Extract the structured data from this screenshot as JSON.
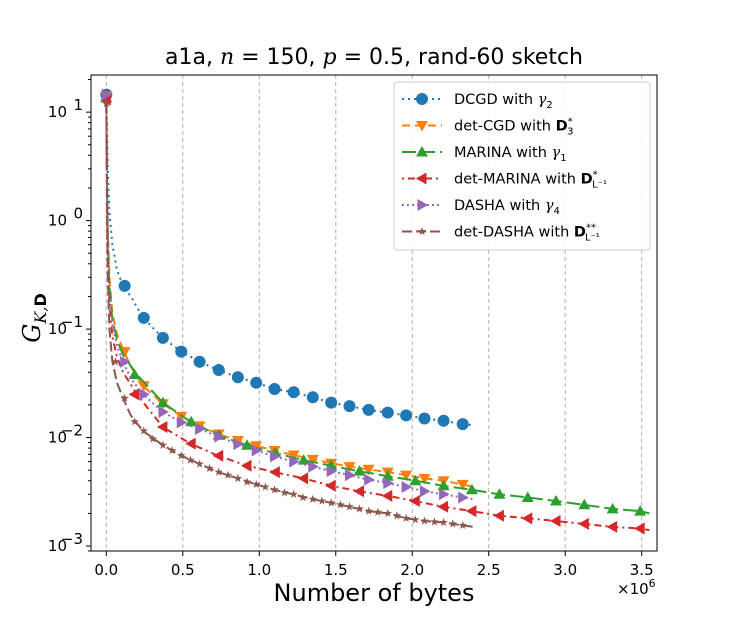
{
  "chart_data": {
    "type": "line",
    "title": {
      "prefix": "a1a, ",
      "n_symbol": "n",
      "n_text": " = 150, ",
      "p_symbol": "p",
      "p_text": " = 0.5, rand-60 sketch"
    },
    "xlabel": "Number of bytes",
    "ylabel": {
      "main": "G",
      "subscript": "K,",
      "subscript_bold": "D"
    },
    "x_multiplier": "×10",
    "x_multiplier_exp": "6",
    "x_ticks": [
      0.0,
      0.5,
      1.0,
      1.5,
      2.0,
      2.5,
      3.0,
      3.5
    ],
    "x_tick_labels": [
      "0.0",
      "0.5",
      "1.0",
      "1.5",
      "2.0",
      "2.5",
      "3.0",
      "3.5"
    ],
    "xlim": [
      -0.1,
      3.6
    ],
    "y_scale": "log",
    "ylim": [
      0.0009,
      22
    ],
    "y_ticks": [
      0.001,
      0.01,
      0.1,
      1,
      10
    ],
    "y_tick_labels": [
      {
        "base": "10",
        "exp": "−3"
      },
      {
        "base": "10",
        "exp": "−2"
      },
      {
        "base": "10",
        "exp": "−1"
      },
      {
        "base": "10",
        "exp": "0"
      },
      {
        "base": "10",
        "exp": "1"
      }
    ],
    "grid": "x-major-dashed",
    "legend_position": "top-right",
    "series": [
      {
        "name": "DCGD with",
        "name_math": "γ",
        "name_sub": "2",
        "color": "#1f77b4",
        "dash": "2,4",
        "marker": "circle",
        "x": [
          0.0,
          0.01,
          0.02,
          0.04,
          0.07,
          0.11,
          0.16,
          0.24,
          0.37,
          0.49,
          0.61,
          0.73,
          0.86,
          0.98,
          1.1,
          1.22,
          1.35,
          1.47,
          1.59,
          1.71,
          1.84,
          1.96,
          2.08,
          2.2,
          2.33,
          2.4
        ],
        "y": [
          15.0,
          3.0,
          1.2,
          0.6,
          0.35,
          0.25,
          0.2,
          0.127,
          0.083,
          0.062,
          0.05,
          0.042,
          0.036,
          0.032,
          0.028,
          0.0262,
          0.0235,
          0.021,
          0.0195,
          0.018,
          0.017,
          0.016,
          0.015,
          0.0143,
          0.0133,
          0.013
        ],
        "marker_x": [
          0.0,
          0.12,
          0.245,
          0.37,
          0.49,
          0.61,
          0.735,
          0.86,
          0.98,
          1.1,
          1.225,
          1.35,
          1.47,
          1.59,
          1.715,
          1.84,
          1.96,
          2.08,
          2.205,
          2.33
        ],
        "marker_y": [
          14.5,
          0.25,
          0.127,
          0.083,
          0.062,
          0.05,
          0.042,
          0.036,
          0.032,
          0.028,
          0.0262,
          0.0235,
          0.021,
          0.0195,
          0.018,
          0.017,
          0.016,
          0.015,
          0.0143,
          0.0133
        ]
      },
      {
        "name": "det-CGD with",
        "name_bold": "D",
        "name_sub": "3",
        "name_sup": "*",
        "color": "#ff7f0e",
        "dash": "8,5",
        "marker": "triangle-down",
        "x": [
          0.0,
          0.005,
          0.01,
          0.02,
          0.04,
          0.07,
          0.11,
          0.16,
          0.24,
          0.37,
          0.49,
          0.61,
          0.73,
          0.86,
          0.98,
          1.1,
          1.22,
          1.35,
          1.47,
          1.59,
          1.71,
          1.84,
          1.96,
          2.08,
          2.2,
          2.33,
          2.4
        ],
        "y": [
          14.0,
          2.0,
          0.8,
          0.3,
          0.14,
          0.09,
          0.065,
          0.045,
          0.03,
          0.0205,
          0.0157,
          0.0128,
          0.0108,
          0.0094,
          0.0084,
          0.0076,
          0.0069,
          0.0063,
          0.0058,
          0.0054,
          0.0051,
          0.0048,
          0.0045,
          0.0042,
          0.004,
          0.0037,
          0.0035
        ],
        "marker_x": [
          0.0,
          0.12,
          0.245,
          0.37,
          0.49,
          0.61,
          0.735,
          0.86,
          0.98,
          1.1,
          1.225,
          1.35,
          1.47,
          1.59,
          1.715,
          1.84,
          1.96,
          2.08,
          2.205,
          2.33
        ],
        "marker_y": [
          14.0,
          0.062,
          0.03,
          0.0205,
          0.0157,
          0.0128,
          0.0108,
          0.0094,
          0.0084,
          0.0076,
          0.0069,
          0.0063,
          0.0058,
          0.0054,
          0.0051,
          0.0048,
          0.0045,
          0.0042,
          0.004,
          0.0037
        ]
      },
      {
        "name": "MARINA with",
        "name_math": "γ",
        "name_sub": "1",
        "color": "#2ca02c",
        "dash": "14,5",
        "marker": "triangle-up",
        "x": [
          0.0,
          0.005,
          0.01,
          0.02,
          0.04,
          0.07,
          0.11,
          0.2,
          0.37,
          0.55,
          0.73,
          0.92,
          1.1,
          1.29,
          1.47,
          1.65,
          1.84,
          2.02,
          2.2,
          2.39,
          2.57,
          2.76,
          2.94,
          3.12,
          3.31,
          3.49,
          3.55
        ],
        "y": [
          13.5,
          2.0,
          0.7,
          0.25,
          0.12,
          0.08,
          0.058,
          0.038,
          0.021,
          0.014,
          0.0105,
          0.0085,
          0.0072,
          0.0062,
          0.0055,
          0.0049,
          0.0044,
          0.004,
          0.0036,
          0.0033,
          0.003,
          0.0028,
          0.0026,
          0.0024,
          0.0022,
          0.0021,
          0.002
        ],
        "marker_x": [
          0.0,
          0.185,
          0.37,
          0.555,
          0.735,
          0.92,
          1.105,
          1.29,
          1.47,
          1.655,
          1.84,
          2.02,
          2.205,
          2.39,
          2.57,
          2.755,
          2.94,
          3.125,
          3.31,
          3.49
        ],
        "marker_y": [
          13.5,
          0.038,
          0.021,
          0.014,
          0.0105,
          0.0085,
          0.0072,
          0.0062,
          0.0055,
          0.0049,
          0.0044,
          0.004,
          0.0036,
          0.0033,
          0.003,
          0.0028,
          0.0026,
          0.0024,
          0.0022,
          0.0021
        ]
      },
      {
        "name": "det-MARINA with",
        "name_bold": "D",
        "name_sub": "L⁻¹",
        "name_sup": "*",
        "color": "#d62728",
        "dash": "2,4,7,4",
        "marker": "triangle-left",
        "x": [
          0.0,
          0.005,
          0.01,
          0.02,
          0.04,
          0.07,
          0.11,
          0.2,
          0.37,
          0.55,
          0.73,
          0.92,
          1.1,
          1.29,
          1.47,
          1.65,
          1.84,
          2.02,
          2.2,
          2.39,
          2.57,
          2.76,
          2.94,
          3.12,
          3.31,
          3.49,
          3.55
        ],
        "y": [
          13.0,
          1.5,
          0.5,
          0.18,
          0.085,
          0.055,
          0.04,
          0.025,
          0.0125,
          0.0088,
          0.0068,
          0.0055,
          0.0048,
          0.0042,
          0.0036,
          0.0032,
          0.0029,
          0.0026,
          0.0023,
          0.0021,
          0.0019,
          0.0018,
          0.0017,
          0.0016,
          0.0015,
          0.00145,
          0.0014
        ],
        "marker_x": [
          0.0,
          0.185,
          0.37,
          0.555,
          0.735,
          0.92,
          1.105,
          1.29,
          1.47,
          1.655,
          1.84,
          2.02,
          2.205,
          2.39,
          2.57,
          2.755,
          2.94,
          3.125,
          3.31,
          3.49
        ],
        "marker_y": [
          13.0,
          0.025,
          0.0125,
          0.0088,
          0.0068,
          0.0055,
          0.0048,
          0.0042,
          0.0036,
          0.0032,
          0.0029,
          0.0026,
          0.0023,
          0.0021,
          0.0019,
          0.0018,
          0.0017,
          0.0016,
          0.0015,
          0.00145
        ]
      },
      {
        "name": "DASHA with",
        "name_math": "γ",
        "name_sub": "4",
        "color": "#9467bd",
        "dash": "2,3",
        "marker": "triangle-right",
        "x": [
          0.0,
          0.005,
          0.01,
          0.02,
          0.04,
          0.07,
          0.11,
          0.16,
          0.24,
          0.37,
          0.49,
          0.61,
          0.73,
          0.86,
          0.98,
          1.1,
          1.22,
          1.35,
          1.47,
          1.59,
          1.71,
          1.84,
          1.96,
          2.08,
          2.2,
          2.33,
          2.4
        ],
        "y": [
          14.5,
          2.0,
          0.6,
          0.22,
          0.11,
          0.07,
          0.05,
          0.035,
          0.025,
          0.0172,
          0.0138,
          0.012,
          0.0102,
          0.0087,
          0.0076,
          0.0067,
          0.006,
          0.0054,
          0.0049,
          0.0045,
          0.0041,
          0.0038,
          0.0035,
          0.0032,
          0.003,
          0.0028,
          0.0027
        ],
        "marker_x": [
          0.0,
          0.12,
          0.245,
          0.37,
          0.49,
          0.61,
          0.735,
          0.86,
          0.98,
          1.1,
          1.225,
          1.35,
          1.47,
          1.59,
          1.715,
          1.84,
          1.96,
          2.08,
          2.205,
          2.33
        ],
        "marker_y": [
          14.5,
          0.05,
          0.025,
          0.0172,
          0.0138,
          0.012,
          0.0102,
          0.0087,
          0.0076,
          0.0067,
          0.006,
          0.0054,
          0.0049,
          0.0045,
          0.0041,
          0.0038,
          0.0035,
          0.0032,
          0.003,
          0.0028
        ]
      },
      {
        "name": "det-DASHA with",
        "name_bold": "D",
        "name_sub": "L⁻¹",
        "name_sup": "**",
        "color": "#8c564b",
        "dash": "10,4",
        "marker": "star",
        "x": [
          0.0,
          0.005,
          0.01,
          0.02,
          0.04,
          0.07,
          0.11,
          0.16,
          0.24,
          0.37,
          0.49,
          0.61,
          0.73,
          0.86,
          0.98,
          1.1,
          1.22,
          1.35,
          1.47,
          1.59,
          1.71,
          1.84,
          1.96,
          2.08,
          2.2,
          2.33,
          2.4
        ],
        "y": [
          12.0,
          1.0,
          0.3,
          0.1,
          0.05,
          0.032,
          0.023,
          0.016,
          0.0115,
          0.0085,
          0.0068,
          0.0057,
          0.0048,
          0.0042,
          0.0037,
          0.0033,
          0.003,
          0.0027,
          0.0025,
          0.0023,
          0.0021,
          0.002,
          0.0018,
          0.0017,
          0.00165,
          0.00155,
          0.0015
        ],
        "marker_x": [
          0.0,
          0.06,
          0.12,
          0.185,
          0.245,
          0.305,
          0.37,
          0.43,
          0.49,
          0.55,
          0.61,
          0.675,
          0.735,
          0.795,
          0.86,
          0.92,
          0.98,
          1.04,
          1.1,
          1.165,
          1.225,
          1.285,
          1.35,
          1.41,
          1.47,
          1.53,
          1.59,
          1.655,
          1.715,
          1.775,
          1.84,
          1.9,
          1.96,
          2.02,
          2.08,
          2.145,
          2.205,
          2.265,
          2.33
        ],
        "marker_y": [
          12.0,
          0.05,
          0.023,
          0.014,
          0.0115,
          0.0097,
          0.0085,
          0.0076,
          0.0068,
          0.0062,
          0.0057,
          0.0052,
          0.0048,
          0.0045,
          0.0042,
          0.0039,
          0.0037,
          0.0035,
          0.0033,
          0.0031,
          0.003,
          0.0028,
          0.0027,
          0.0026,
          0.0025,
          0.0024,
          0.0023,
          0.0022,
          0.0021,
          0.00205,
          0.002,
          0.0019,
          0.0018,
          0.00175,
          0.0017,
          0.00167,
          0.00165,
          0.0016,
          0.00155
        ]
      }
    ]
  }
}
